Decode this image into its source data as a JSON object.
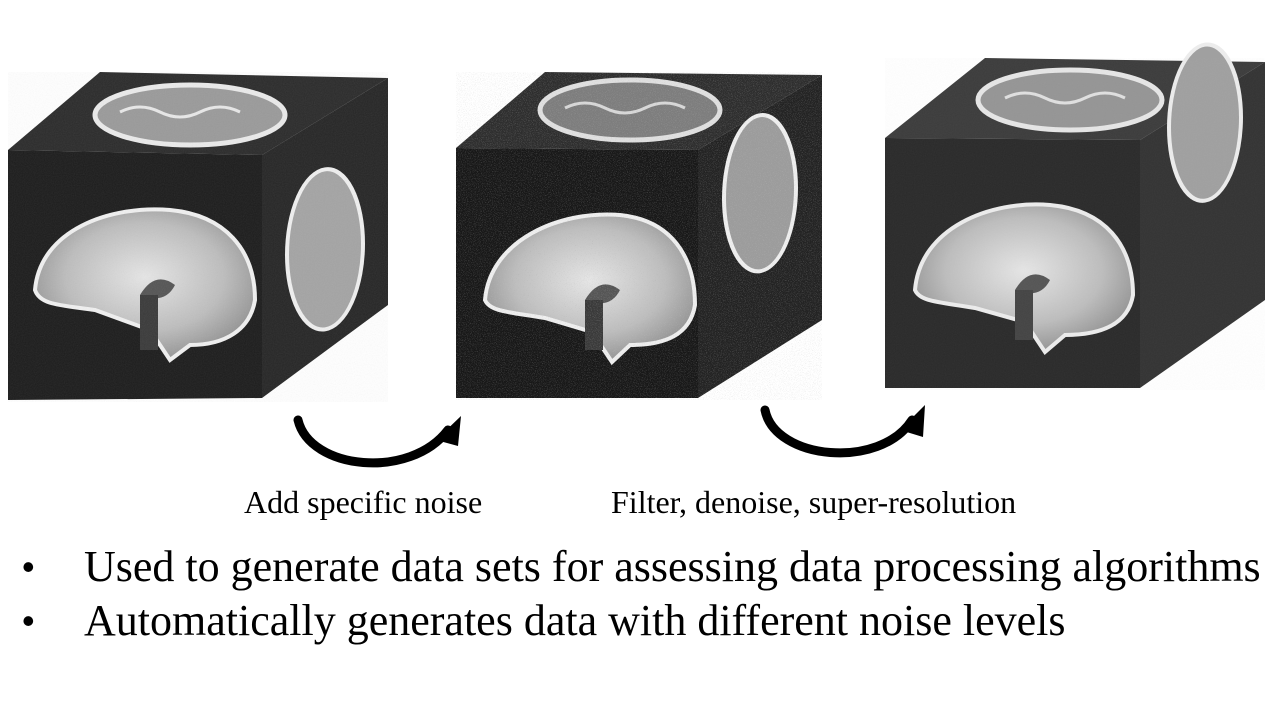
{
  "captions": {
    "arrow_1": "Add specific noise",
    "arrow_2": "Filter, denoise, super-resolution"
  },
  "bullets": [
    "Used to generate data sets for assessing data processing algorithms",
    "Automatically generates data with different noise levels"
  ],
  "bullet_glyph": "•",
  "colors": {
    "background": "#ffffff",
    "text": "#000000",
    "cube_dark": "#1a1a1a",
    "tissue": "#cfcfcf"
  }
}
